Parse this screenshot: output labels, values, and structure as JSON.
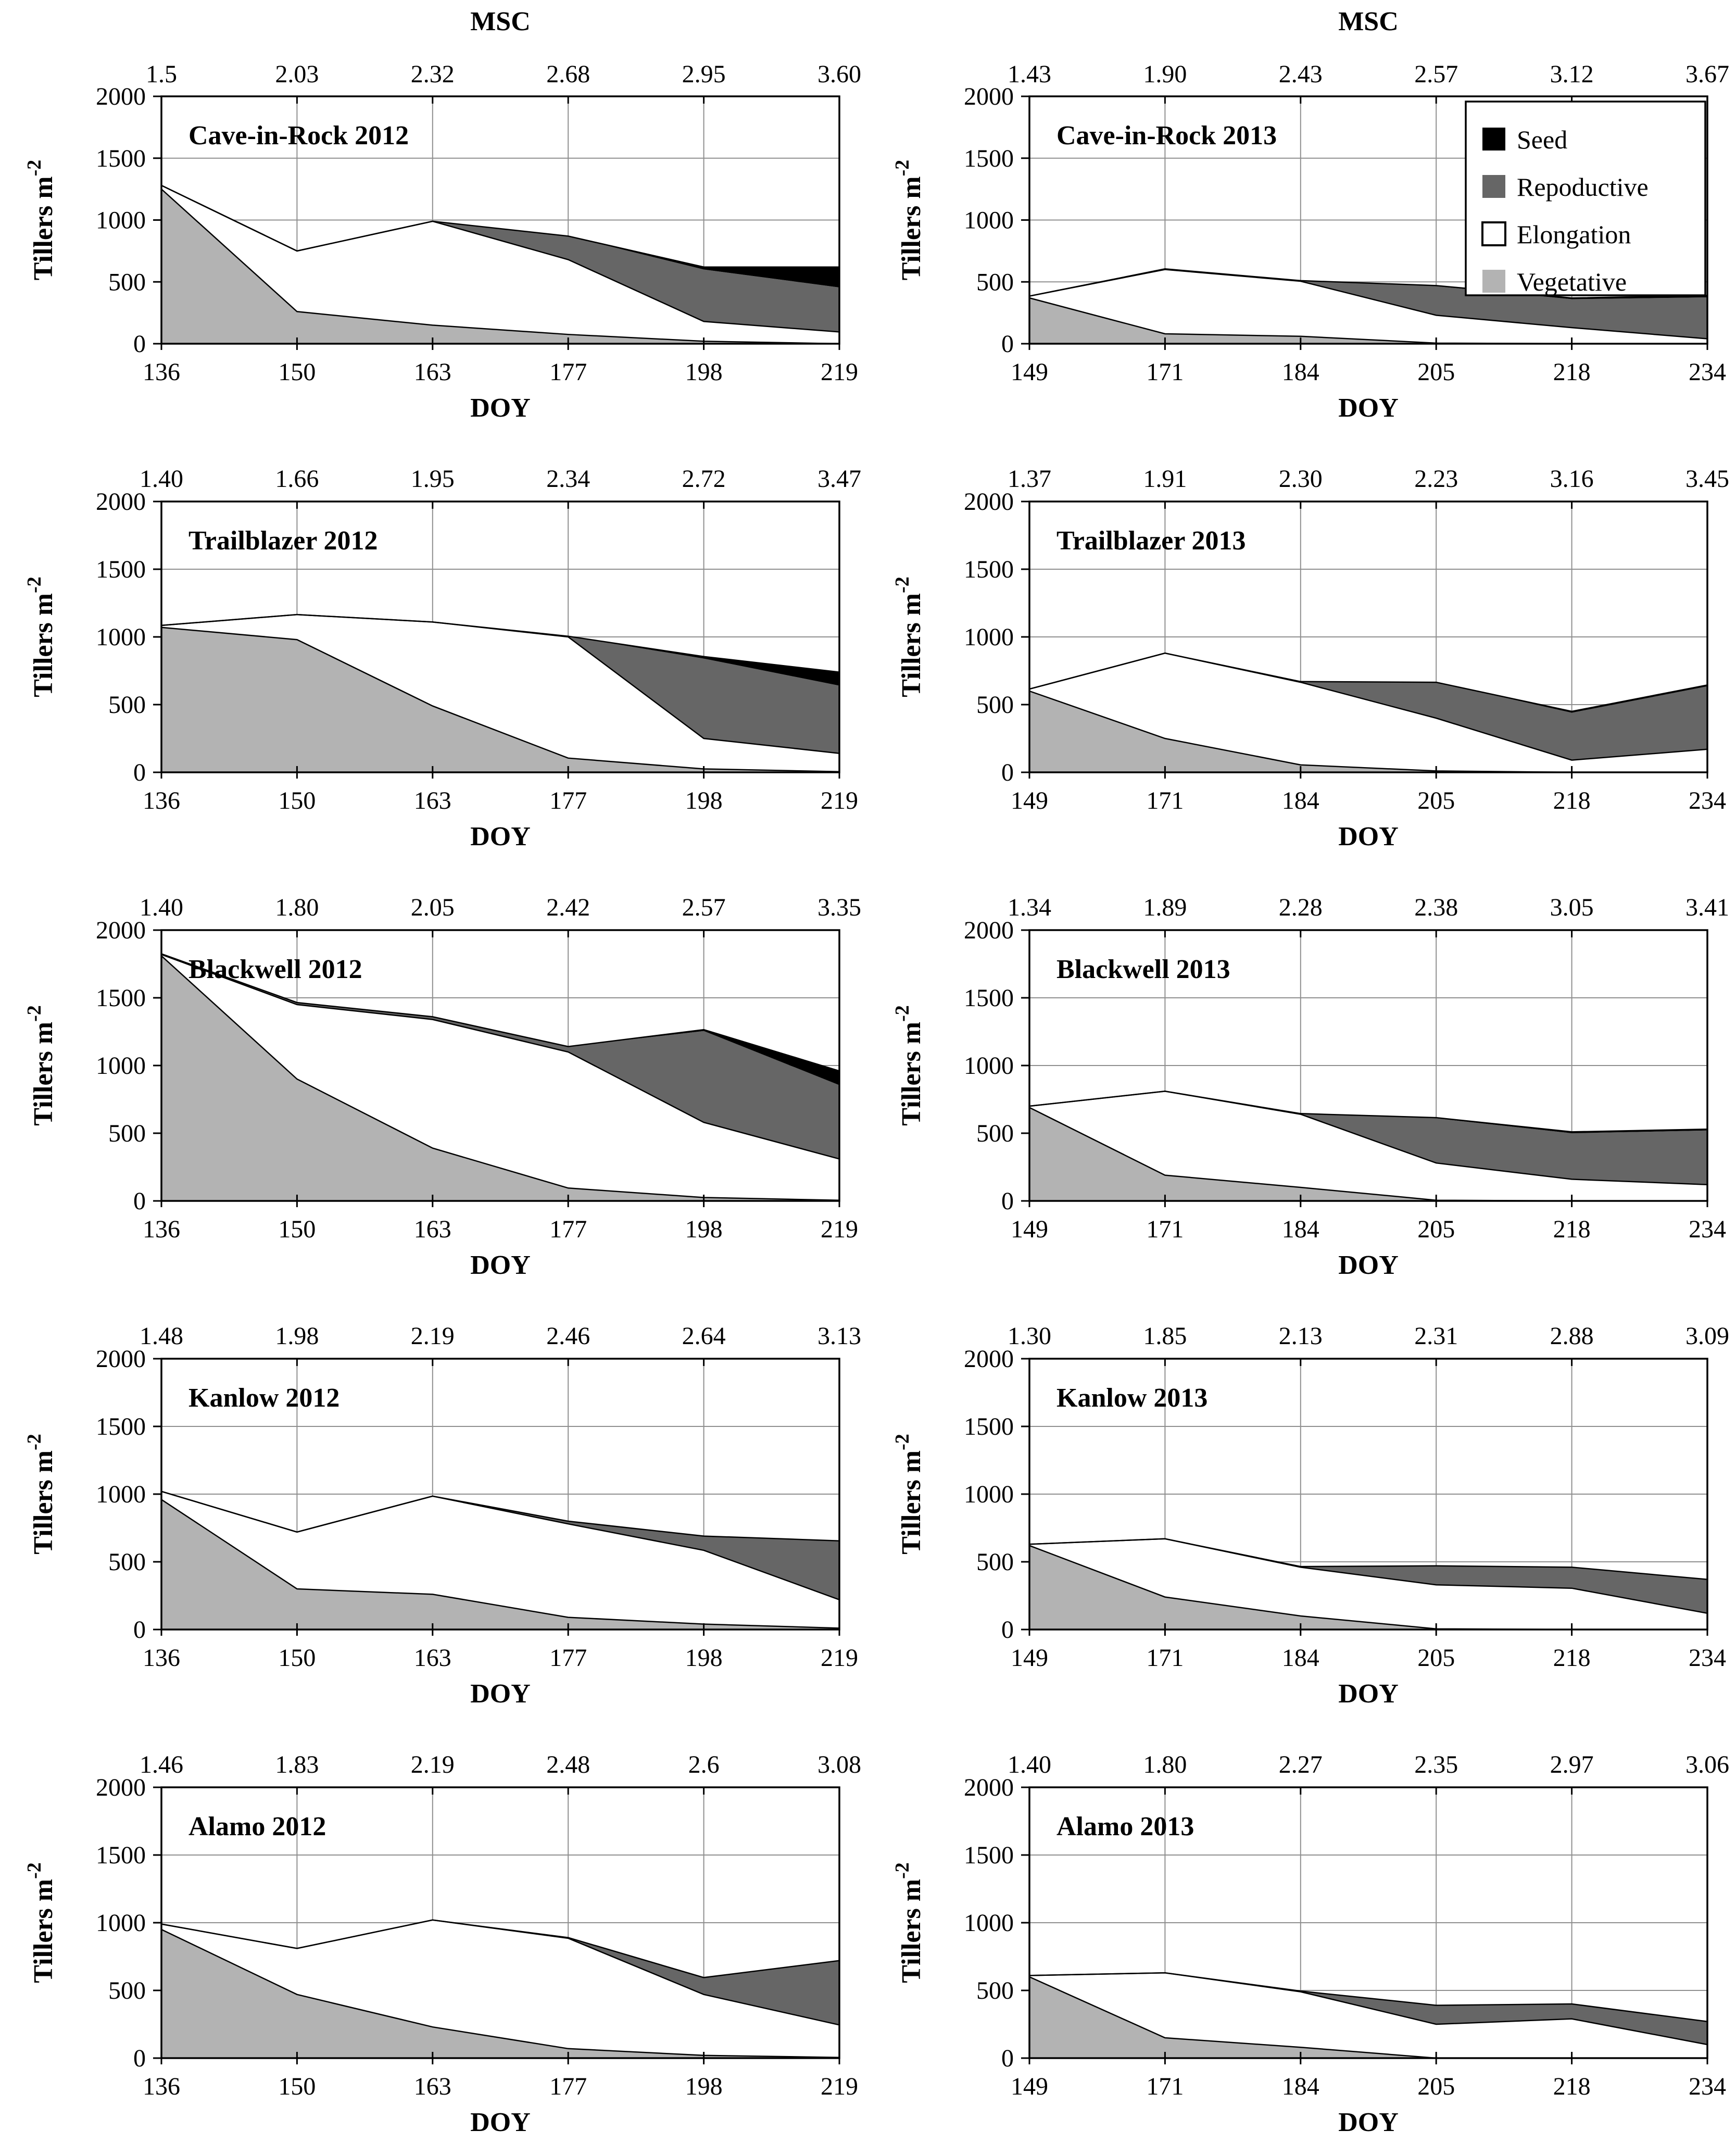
{
  "figure": {
    "description": "Stacked-area phenology charts of switchgrass tiller density by cultivar and year",
    "rows": 5,
    "cols": 2
  },
  "colors": {
    "background": "#ffffff",
    "vegetative": "#b3b3b3",
    "elongation": "#ffffff",
    "reproductive": "#666666",
    "seed": "#000000",
    "grid": "#8f8f8f",
    "axis": "#000000"
  },
  "axes": {
    "y_label_main": "Tillers m",
    "y_label_sup": "-2",
    "x_label": "DOY",
    "top_label": "MSC",
    "y_ticks": [
      0,
      500,
      1000,
      1500,
      2000
    ],
    "ylim": [
      0,
      2000
    ]
  },
  "legend": {
    "items": [
      {
        "label": "Seed",
        "swatch": "seed"
      },
      {
        "label": "Repoductive",
        "swatch": "reproductive"
      },
      {
        "label": "Elongation",
        "swatch": "elongation"
      },
      {
        "label": "Vegetative",
        "swatch": "vegetative"
      }
    ]
  },
  "chart_data": [
    {
      "type": "area",
      "title": "Cave-in-Rock 2012",
      "show_msc_title": true,
      "show_legend": false,
      "doy": [
        136,
        150,
        163,
        177,
        198,
        219
      ],
      "msc": [
        "1.5",
        "2.03",
        "2.32",
        "2.68",
        "2.95",
        "3.60"
      ],
      "xlabel": "DOY",
      "ylabel": "Tillers m-2",
      "ylim": [
        0,
        2000
      ],
      "series": [
        {
          "name": "Vegetative",
          "values": [
            1250,
            260,
            150,
            75,
            20,
            0
          ]
        },
        {
          "name": "Elongation",
          "values": [
            30,
            490,
            840,
            605,
            160,
            95
          ]
        },
        {
          "name": "Repoductive",
          "values": [
            0,
            0,
            0,
            190,
            420,
            360
          ]
        },
        {
          "name": "Seed",
          "values": [
            0,
            0,
            0,
            0,
            20,
            165
          ]
        }
      ]
    },
    {
      "type": "area",
      "title": "Cave-in-Rock 2013",
      "show_msc_title": true,
      "show_legend": true,
      "doy": [
        149,
        171,
        184,
        205,
        218,
        234
      ],
      "msc": [
        "1.43",
        "1.90",
        "2.43",
        "2.57",
        "3.12",
        "3.67"
      ],
      "xlabel": "DOY",
      "ylabel": "Tillers m-2",
      "ylim": [
        0,
        2000
      ],
      "series": [
        {
          "name": "Vegetative",
          "values": [
            370,
            80,
            60,
            5,
            0,
            0
          ]
        },
        {
          "name": "Elongation",
          "values": [
            15,
            520,
            445,
            225,
            130,
            40
          ]
        },
        {
          "name": "Repoductive",
          "values": [
            0,
            5,
            5,
            235,
            230,
            335
          ]
        },
        {
          "name": "Seed",
          "values": [
            0,
            0,
            0,
            5,
            10,
            15
          ]
        }
      ]
    },
    {
      "type": "area",
      "title": "Trailblazer 2012",
      "show_msc_title": false,
      "show_legend": false,
      "doy": [
        136,
        150,
        163,
        177,
        198,
        219
      ],
      "msc": [
        "1.40",
        "1.66",
        "1.95",
        "2.34",
        "2.72",
        "3.47"
      ],
      "xlabel": "DOY",
      "ylabel": "Tillers m-2",
      "ylim": [
        0,
        2000
      ],
      "series": [
        {
          "name": "Vegetative",
          "values": [
            1070,
            980,
            490,
            105,
            25,
            5
          ]
        },
        {
          "name": "Elongation",
          "values": [
            15,
            185,
            620,
            895,
            225,
            135
          ]
        },
        {
          "name": "Repoductive",
          "values": [
            0,
            0,
            0,
            5,
            590,
            500
          ]
        },
        {
          "name": "Seed",
          "values": [
            0,
            0,
            0,
            0,
            15,
            100
          ]
        }
      ]
    },
    {
      "type": "area",
      "title": "Trailblazer 2013",
      "show_msc_title": false,
      "show_legend": false,
      "doy": [
        149,
        171,
        184,
        205,
        218,
        234
      ],
      "msc": [
        "1.37",
        "1.91",
        "2.30",
        "2.23",
        "3.16",
        "3.45"
      ],
      "xlabel": "DOY",
      "ylabel": "Tillers m-2",
      "ylim": [
        0,
        2000
      ],
      "series": [
        {
          "name": "Vegetative",
          "values": [
            600,
            250,
            55,
            10,
            0,
            0
          ]
        },
        {
          "name": "Elongation",
          "values": [
            15,
            630,
            610,
            390,
            90,
            170
          ]
        },
        {
          "name": "Repoductive",
          "values": [
            0,
            0,
            5,
            265,
            350,
            465
          ]
        },
        {
          "name": "Seed",
          "values": [
            0,
            0,
            0,
            0,
            10,
            10
          ]
        }
      ]
    },
    {
      "type": "area",
      "title": "Blackwell 2012",
      "show_msc_title": false,
      "show_legend": false,
      "doy": [
        136,
        150,
        163,
        177,
        198,
        219
      ],
      "msc": [
        "1.40",
        "1.80",
        "2.05",
        "2.42",
        "2.57",
        "3.35"
      ],
      "xlabel": "DOY",
      "ylabel": "Tillers m-2",
      "ylim": [
        0,
        2000
      ],
      "series": [
        {
          "name": "Vegetative",
          "values": [
            1810,
            900,
            390,
            95,
            25,
            5
          ]
        },
        {
          "name": "Elongation",
          "values": [
            10,
            550,
            950,
            1005,
            555,
            305
          ]
        },
        {
          "name": "Repoductive",
          "values": [
            5,
            15,
            20,
            40,
            675,
            545
          ]
        },
        {
          "name": "Seed",
          "values": [
            0,
            0,
            0,
            0,
            10,
            105
          ]
        }
      ]
    },
    {
      "type": "area",
      "title": "Blackwell 2013",
      "show_msc_title": false,
      "show_legend": false,
      "doy": [
        149,
        171,
        184,
        205,
        218,
        234
      ],
      "msc": [
        "1.34",
        "1.89",
        "2.28",
        "2.38",
        "3.05",
        "3.41"
      ],
      "xlabel": "DOY",
      "ylabel": "Tillers m-2",
      "ylim": [
        0,
        2000
      ],
      "series": [
        {
          "name": "Vegetative",
          "values": [
            690,
            190,
            100,
            5,
            0,
            0
          ]
        },
        {
          "name": "Elongation",
          "values": [
            10,
            620,
            540,
            275,
            160,
            120
          ]
        },
        {
          "name": "Repoductive",
          "values": [
            0,
            0,
            5,
            330,
            340,
            400
          ]
        },
        {
          "name": "Seed",
          "values": [
            0,
            0,
            0,
            5,
            10,
            10
          ]
        }
      ]
    },
    {
      "type": "area",
      "title": "Kanlow 2012",
      "show_msc_title": false,
      "show_legend": false,
      "doy": [
        136,
        150,
        163,
        177,
        198,
        219
      ],
      "msc": [
        "1.48",
        "1.98",
        "2.19",
        "2.46",
        "2.64",
        "3.13"
      ],
      "xlabel": "DOY",
      "ylabel": "Tillers m-2",
      "ylim": [
        0,
        2000
      ],
      "series": [
        {
          "name": "Vegetative",
          "values": [
            960,
            300,
            260,
            90,
            40,
            10
          ]
        },
        {
          "name": "Elongation",
          "values": [
            60,
            420,
            725,
            690,
            545,
            210
          ]
        },
        {
          "name": "Repoductive",
          "values": [
            0,
            0,
            0,
            20,
            105,
            435
          ]
        },
        {
          "name": "Seed",
          "values": [
            0,
            0,
            0,
            0,
            0,
            0
          ]
        }
      ]
    },
    {
      "type": "area",
      "title": "Kanlow 2013",
      "show_msc_title": false,
      "show_legend": false,
      "doy": [
        149,
        171,
        184,
        205,
        218,
        234
      ],
      "msc": [
        "1.30",
        "1.85",
        "2.13",
        "2.31",
        "2.88",
        "3.09"
      ],
      "xlabel": "DOY",
      "ylabel": "Tillers m-2",
      "ylim": [
        0,
        2000
      ],
      "series": [
        {
          "name": "Vegetative",
          "values": [
            620,
            240,
            100,
            5,
            0,
            0
          ]
        },
        {
          "name": "Elongation",
          "values": [
            10,
            430,
            360,
            325,
            305,
            120
          ]
        },
        {
          "name": "Repoductive",
          "values": [
            0,
            0,
            5,
            140,
            155,
            250
          ]
        },
        {
          "name": "Seed",
          "values": [
            0,
            0,
            0,
            0,
            0,
            0
          ]
        }
      ]
    },
    {
      "type": "area",
      "title": "Alamo 2012",
      "show_msc_title": false,
      "show_legend": false,
      "doy": [
        136,
        150,
        163,
        177,
        198,
        219
      ],
      "msc": [
        "1.46",
        "1.83",
        "2.19",
        "2.48",
        "2.6",
        "3.08"
      ],
      "xlabel": "DOY",
      "ylabel": "Tillers m-2",
      "ylim": [
        0,
        2000
      ],
      "series": [
        {
          "name": "Vegetative",
          "values": [
            950,
            470,
            230,
            70,
            20,
            5
          ]
        },
        {
          "name": "Elongation",
          "values": [
            40,
            340,
            790,
            815,
            450,
            240
          ]
        },
        {
          "name": "Repoductive",
          "values": [
            0,
            0,
            0,
            5,
            125,
            475
          ]
        },
        {
          "name": "Seed",
          "values": [
            0,
            0,
            0,
            0,
            0,
            0
          ]
        }
      ]
    },
    {
      "type": "area",
      "title": "Alamo 2013",
      "show_msc_title": false,
      "show_legend": false,
      "doy": [
        149,
        171,
        184,
        205,
        218,
        234
      ],
      "msc": [
        "1.40",
        "1.80",
        "2.27",
        "2.35",
        "2.97",
        "3.06"
      ],
      "xlabel": "DOY",
      "ylabel": "Tillers m-2",
      "ylim": [
        0,
        2000
      ],
      "series": [
        {
          "name": "Vegetative",
          "values": [
            600,
            150,
            80,
            0,
            0,
            0
          ]
        },
        {
          "name": "Elongation",
          "values": [
            10,
            480,
            410,
            250,
            290,
            100
          ]
        },
        {
          "name": "Repoductive",
          "values": [
            0,
            0,
            5,
            140,
            110,
            170
          ]
        },
        {
          "name": "Seed",
          "values": [
            0,
            0,
            0,
            0,
            0,
            0
          ]
        }
      ]
    }
  ]
}
